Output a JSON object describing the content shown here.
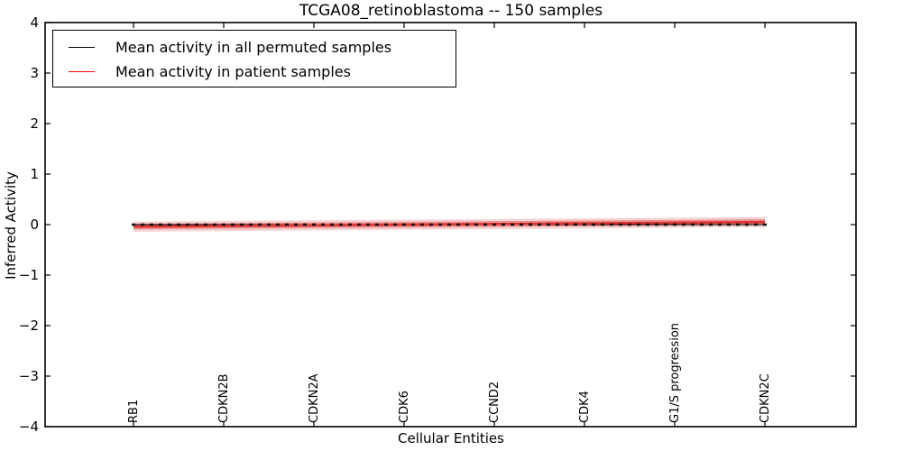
{
  "figure": {
    "background_color": "#ffffff",
    "axis_color": "#000000"
  },
  "legend": {
    "position": "upper-left",
    "items": [
      {
        "label": "Mean activity in all permuted samples",
        "color": "#000000"
      },
      {
        "label": "Mean activity in patient samples",
        "color": "#ff0000"
      }
    ]
  },
  "chart_data": {
    "type": "line",
    "title": "TCGA08_retinoblastoma -- 150 samples",
    "xlabel": "Cellular Entities",
    "ylabel": "Inferred Activity",
    "ylim": [
      -4,
      4
    ],
    "ytick_labels": [
      "4",
      "3",
      "2",
      "1",
      "0",
      "−1",
      "−2",
      "−3",
      "−4"
    ],
    "xtick_labels": [
      "RB1",
      "CDKN2B",
      "CDKN2A",
      "CDK6",
      "CCND2",
      "CDK4",
      "G1/S progression",
      "CDKN2C"
    ],
    "grid": false,
    "n_points": 71,
    "labeled_every": 10,
    "series": [
      {
        "name": "Mean activity in all permuted samples",
        "color": "#000000",
        "style": "solid with square markers at every entity",
        "value_start": 0.0,
        "value_end": 0.0
      },
      {
        "name": "Mean activity in patient samples",
        "color": "#dd3333",
        "style": "solid",
        "value_start": -0.04,
        "value_end": 0.05
      }
    ],
    "band": {
      "around": "Mean activity in patient samples",
      "color": "#e03030",
      "outer_half_width": 0.1,
      "outer_opacity": 0.22,
      "inner_half_width": 0.055,
      "inner_opacity": 0.42
    }
  }
}
